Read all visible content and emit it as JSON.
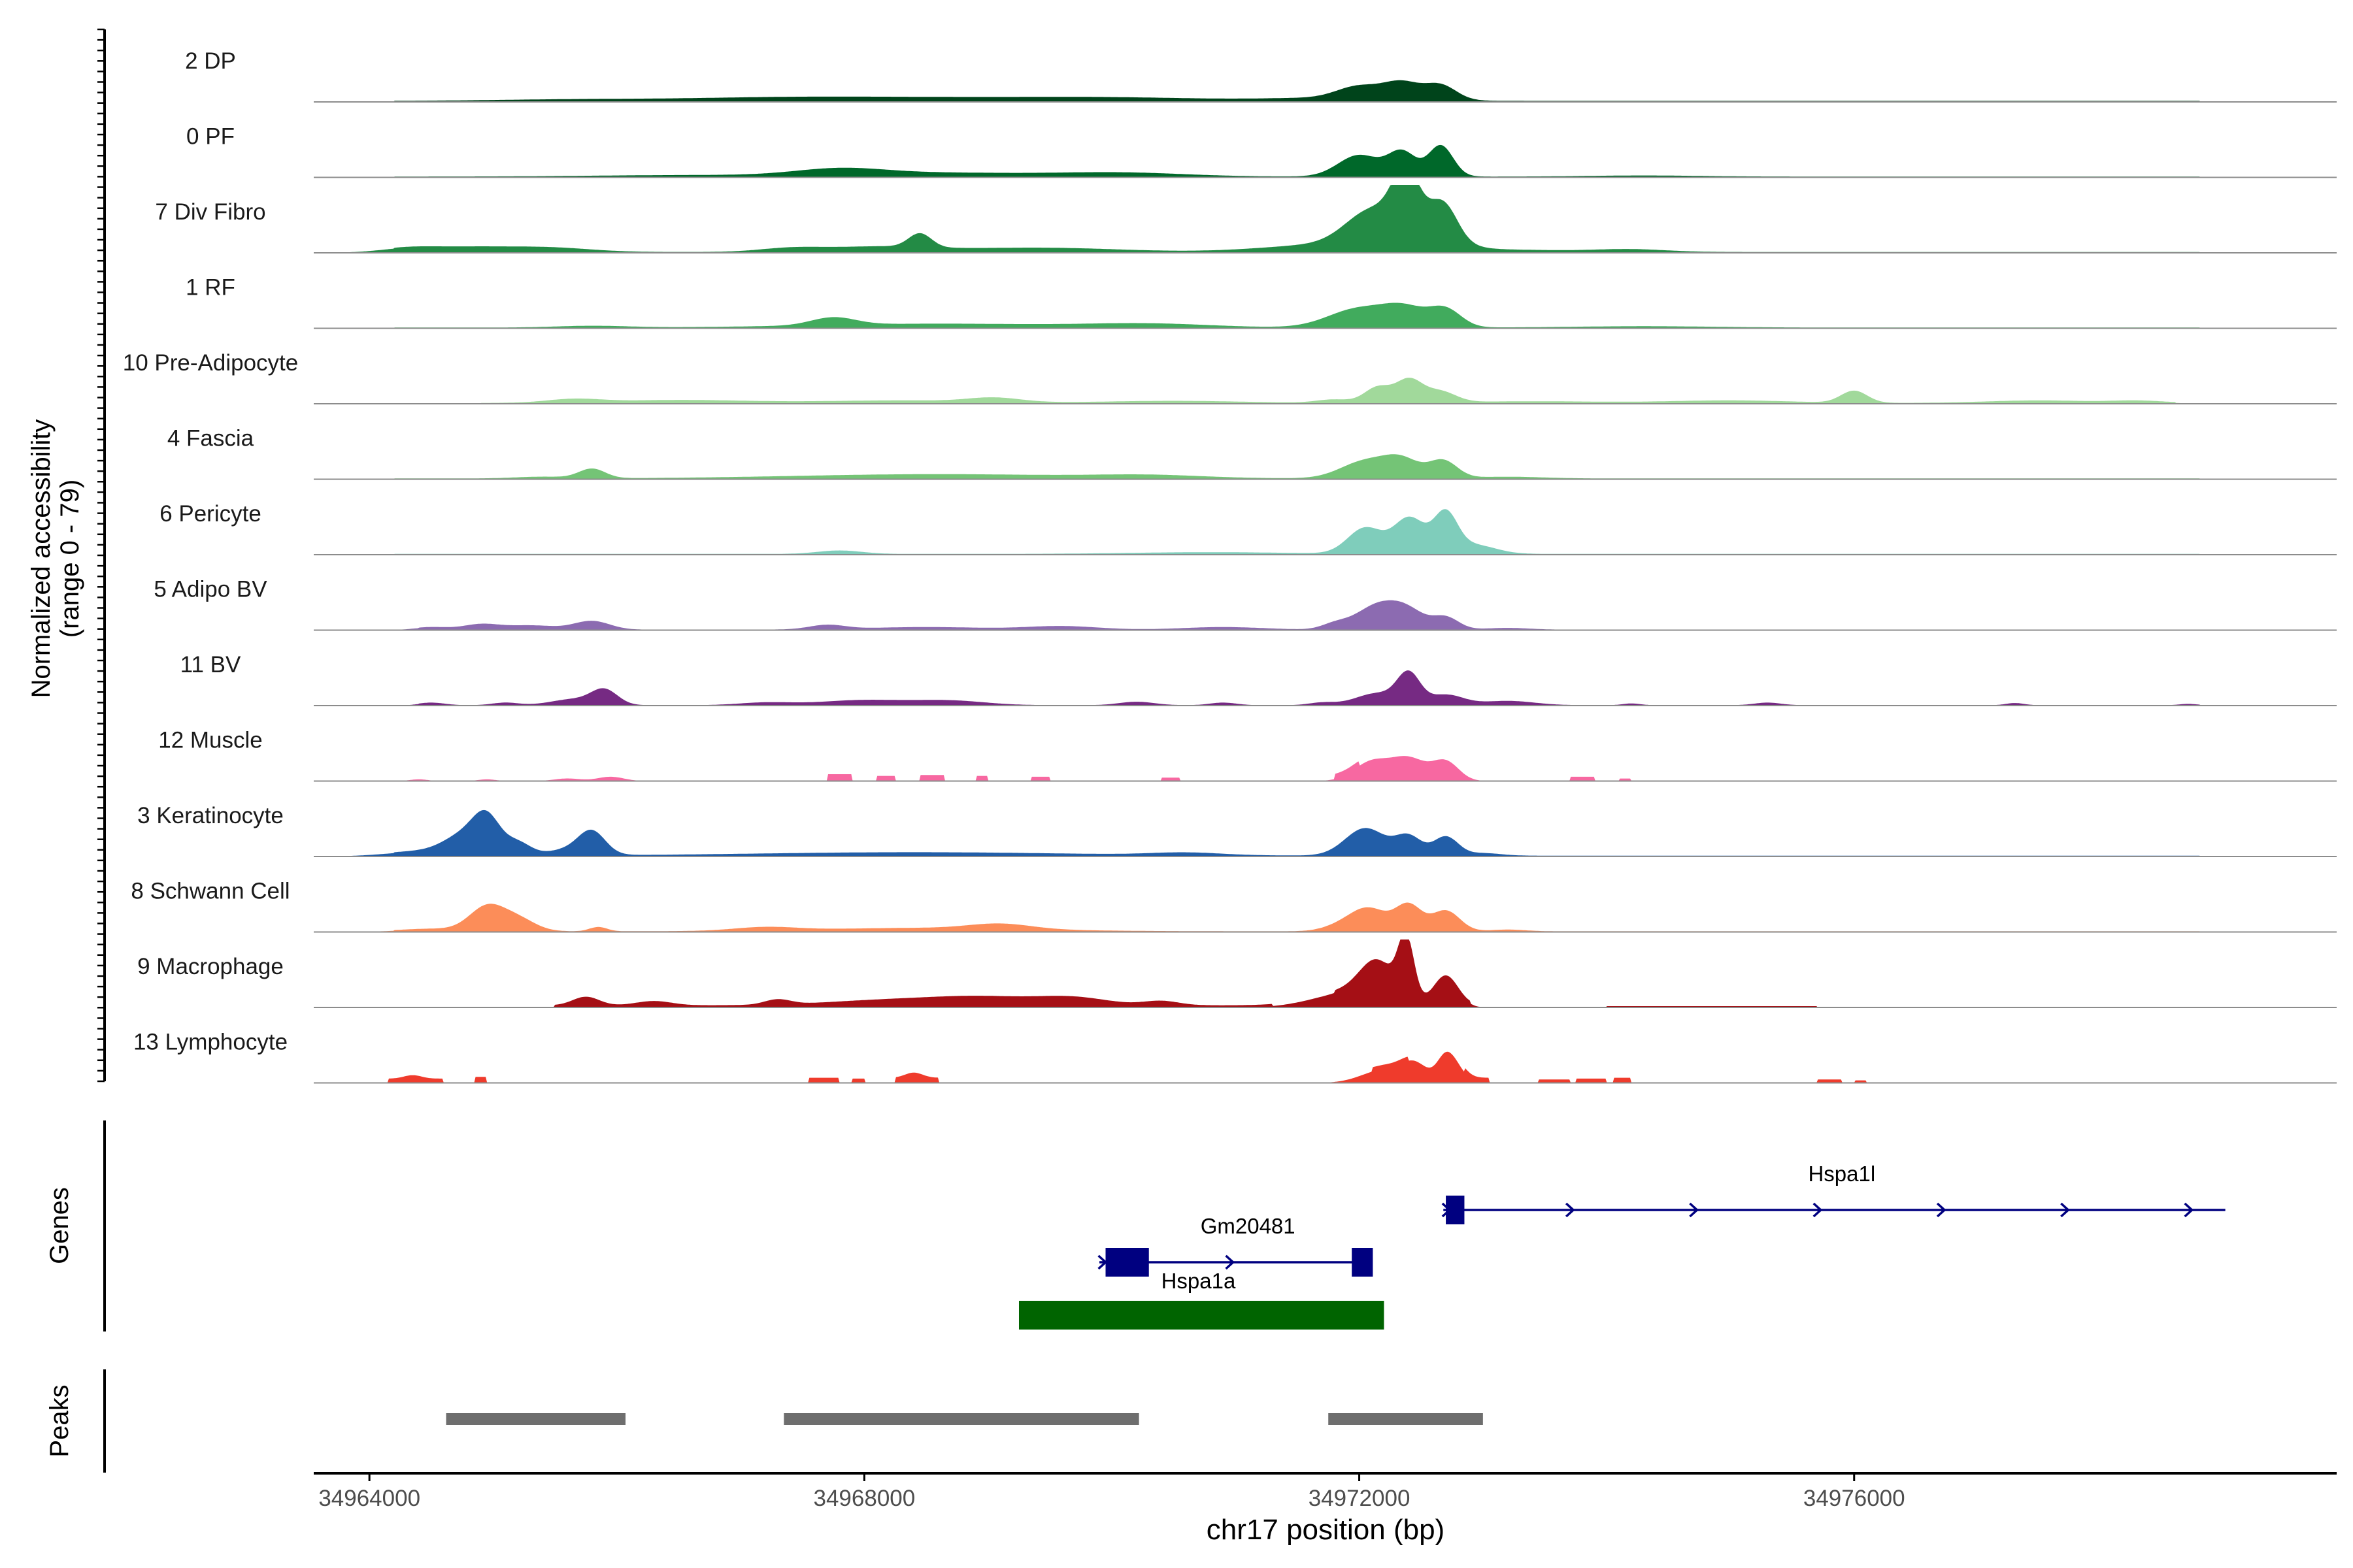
{
  "chart_data": {
    "type": "area",
    "title": "",
    "xlabel": "chr17 position (bp)",
    "ylabel_line1": "Normalized accessibility",
    "ylabel_line2": "(range 0 - 79)",
    "xlim": [
      34963550,
      34979900
    ],
    "yrange": [
      0,
      79
    ],
    "x_ticks": [
      34964000,
      34968000,
      34972000,
      34976000
    ],
    "x_tick_labels": [
      "34964000",
      "34968000",
      "34972000",
      "34976000"
    ],
    "genes_label": "Genes",
    "peaks_label": "Peaks",
    "tracks": [
      {
        "name": "2 DP",
        "color": "#00441b",
        "segments": [
          [
            34964200,
            34978800,
            1.2
          ]
        ],
        "peaks": [
          [
            34965700,
            1800,
            1.8
          ],
          [
            34967200,
            2000,
            2.5
          ],
          [
            34968500,
            3000,
            4
          ],
          [
            34970100,
            2000,
            3
          ],
          [
            34971800,
            1500,
            3.5
          ],
          [
            34972000,
            500,
            14
          ],
          [
            34972350,
            420,
            19
          ],
          [
            34972660,
            360,
            17
          ]
        ]
      },
      {
        "name": "0 PF",
        "color": "#00682a",
        "segments": [
          [
            34964200,
            34978800,
            1.0
          ]
        ],
        "peaks": [
          [
            34966500,
            2000,
            1.5
          ],
          [
            34967800,
            1000,
            7
          ],
          [
            34968600,
            2400,
            4.5
          ],
          [
            34970100,
            1400,
            4
          ],
          [
            34972000,
            480,
            25
          ],
          [
            34972350,
            320,
            28
          ],
          [
            34972660,
            280,
            36
          ],
          [
            34974300,
            1200,
            1.2
          ]
        ]
      },
      {
        "name": "7 Div Fibro",
        "color": "#238b45",
        "segments": [
          [
            34964200,
            34978800,
            1.0
          ]
        ],
        "peaks": [
          [
            34964300,
            600,
            3
          ],
          [
            34964800,
            1200,
            6
          ],
          [
            34965500,
            900,
            4
          ],
          [
            34967400,
            700,
            4
          ],
          [
            34968100,
            1200,
            6
          ],
          [
            34968450,
            260,
            16
          ],
          [
            34969400,
            1800,
            5
          ],
          [
            34971800,
            1500,
            9
          ],
          [
            34972100,
            600,
            38
          ],
          [
            34972380,
            300,
            64
          ],
          [
            34972680,
            320,
            40
          ],
          [
            34972500,
            700,
            18
          ],
          [
            34973200,
            1500,
            2.5
          ],
          [
            34974200,
            800,
            3
          ]
        ]
      },
      {
        "name": "1 RF",
        "color": "#41ab5d",
        "segments": [
          [
            34964200,
            34978800,
            0.9
          ]
        ],
        "peaks": [
          [
            34965800,
            800,
            2
          ],
          [
            34967750,
            500,
            9
          ],
          [
            34968600,
            2800,
            4.5
          ],
          [
            34970300,
            1400,
            4
          ],
          [
            34972000,
            700,
            22
          ],
          [
            34972380,
            500,
            20
          ],
          [
            34972700,
            360,
            20
          ],
          [
            34974300,
            1600,
            1.5
          ]
        ]
      },
      {
        "name": "10 Pre-Adipocyte",
        "color": "#a1d99b",
        "segments": [
          [
            34964900,
            34978600,
            0.9
          ]
        ],
        "peaks": [
          [
            34965650,
            600,
            4
          ],
          [
            34966500,
            1600,
            3.5
          ],
          [
            34968300,
            1800,
            3
          ],
          [
            34969050,
            600,
            5
          ],
          [
            34970500,
            1600,
            2.5
          ],
          [
            34971800,
            400,
            4
          ],
          [
            34972150,
            300,
            18
          ],
          [
            34972400,
            300,
            26
          ],
          [
            34972650,
            360,
            13
          ],
          [
            34973400,
            1600,
            2
          ],
          [
            34975000,
            1400,
            3
          ],
          [
            34976000,
            300,
            14
          ],
          [
            34977500,
            1200,
            3
          ],
          [
            34978300,
            600,
            2.5
          ]
        ]
      },
      {
        "name": "4 Fascia",
        "color": "#74c476",
        "segments": [
          [
            34964200,
            34978800,
            0.9
          ]
        ],
        "peaks": [
          [
            34965400,
            600,
            2
          ],
          [
            34965800,
            300,
            11
          ],
          [
            34968600,
            3200,
            5
          ],
          [
            34970300,
            1200,
            3
          ],
          [
            34972050,
            560,
            20
          ],
          [
            34972350,
            420,
            20
          ],
          [
            34972680,
            320,
            20
          ],
          [
            34973200,
            800,
            2
          ]
        ]
      },
      {
        "name": "6 Pericyte",
        "color": "#7fcdbb",
        "segments": [
          [
            34964200,
            34978800,
            0.9
          ]
        ],
        "peaks": [
          [
            34967800,
            500,
            4
          ],
          [
            34970800,
            1800,
            2
          ],
          [
            34972050,
            400,
            30
          ],
          [
            34972400,
            340,
            36
          ],
          [
            34972700,
            260,
            38
          ],
          [
            34972700,
            700,
            12
          ],
          [
            34973000,
            400,
            4
          ]
        ]
      },
      {
        "name": "5 Adipo BV",
        "color": "#8c6bb1",
        "segments": [
          [
            34964400,
            34978700,
            0.6
          ]
        ],
        "peaks": [
          [
            34964500,
            400,
            3
          ],
          [
            34964900,
            400,
            6
          ],
          [
            34965300,
            600,
            5
          ],
          [
            34965800,
            400,
            10
          ],
          [
            34967700,
            400,
            5
          ],
          [
            34968500,
            1400,
            3
          ],
          [
            34969600,
            800,
            4
          ],
          [
            34970900,
            900,
            3
          ],
          [
            34971800,
            300,
            6
          ],
          [
            34972150,
            500,
            28
          ],
          [
            34972400,
            400,
            18
          ],
          [
            34972700,
            300,
            14
          ],
          [
            34973200,
            500,
            2
          ]
        ]
      },
      {
        "name": "11 BV",
        "color": "#762a83",
        "segments": [
          [
            34964400,
            34978800,
            0.5
          ]
        ],
        "peaks": [
          [
            34964500,
            300,
            3
          ],
          [
            34965100,
            300,
            3
          ],
          [
            34965650,
            500,
            7
          ],
          [
            34965900,
            300,
            17
          ],
          [
            34967200,
            600,
            3
          ],
          [
            34968000,
            1000,
            6
          ],
          [
            34968700,
            800,
            5
          ],
          [
            34970200,
            400,
            4
          ],
          [
            34970900,
            300,
            3
          ],
          [
            34971700,
            300,
            3
          ],
          [
            34972150,
            500,
            14
          ],
          [
            34972400,
            260,
            34
          ],
          [
            34972700,
            400,
            12
          ],
          [
            34973200,
            600,
            5
          ],
          [
            34974200,
            200,
            2
          ],
          [
            34975300,
            300,
            3
          ],
          [
            34977300,
            200,
            2.5
          ],
          [
            34978700,
            200,
            1.5
          ]
        ]
      },
      {
        "name": "12 Muscle",
        "color": "#f768a1",
        "segments": [
          [
            34967700,
            34967900,
            8
          ],
          [
            34968100,
            34968250,
            6
          ],
          [
            34968450,
            34968650,
            7
          ],
          [
            34968900,
            34969000,
            6
          ],
          [
            34969350,
            34969500,
            5
          ],
          [
            34970400,
            34970550,
            4
          ],
          [
            34971800,
            34972000,
            6
          ],
          [
            34973700,
            34973900,
            5
          ],
          [
            34974100,
            34974200,
            3
          ]
        ],
        "peaks": [
          [
            34965600,
            300,
            3
          ],
          [
            34965950,
            300,
            5
          ],
          [
            34964400,
            200,
            2
          ],
          [
            34964950,
            200,
            2
          ],
          [
            34972100,
            400,
            22
          ],
          [
            34972400,
            400,
            26
          ],
          [
            34972700,
            300,
            22
          ]
        ]
      },
      {
        "name": "3 Keratinocyte",
        "color": "#225ea8",
        "segments": [
          [
            34964200,
            34978800,
            1.0
          ]
        ],
        "peaks": [
          [
            34964400,
            800,
            5
          ],
          [
            34964800,
            500,
            25
          ],
          [
            34964950,
            300,
            33
          ],
          [
            34965200,
            300,
            14
          ],
          [
            34965800,
            300,
            24
          ],
          [
            34965650,
            500,
            8
          ],
          [
            34968400,
            3600,
            4
          ],
          [
            34970600,
            800,
            3
          ],
          [
            34972050,
            460,
            32
          ],
          [
            34972400,
            300,
            22
          ],
          [
            34972700,
            280,
            22
          ],
          [
            34973000,
            400,
            3
          ]
        ]
      },
      {
        "name": "8 Schwann Cell",
        "color": "#fc8d59",
        "segments": [
          [
            34964200,
            34978800,
            0.8
          ]
        ],
        "peaks": [
          [
            34964500,
            700,
            3
          ],
          [
            34964950,
            400,
            28
          ],
          [
            34965200,
            400,
            14
          ],
          [
            34965850,
            200,
            5
          ],
          [
            34967200,
            700,
            4
          ],
          [
            34968500,
            2400,
            4
          ],
          [
            34969100,
            700,
            6
          ],
          [
            34971850,
            400,
            6
          ],
          [
            34972080,
            420,
            26
          ],
          [
            34972400,
            300,
            30
          ],
          [
            34972700,
            320,
            24
          ],
          [
            34973200,
            400,
            2
          ]
        ]
      },
      {
        "name": "9 Macrophage",
        "color": "#a50f15",
        "segments": [
          [
            34965500,
            34971300,
            2.5
          ],
          [
            34971800,
            34972900,
            3
          ],
          [
            34974000,
            34975700,
            1.5
          ]
        ],
        "peaks": [
          [
            34965750,
            300,
            10
          ],
          [
            34966300,
            400,
            5
          ],
          [
            34967300,
            300,
            6
          ],
          [
            34968200,
            1400,
            6
          ],
          [
            34969000,
            1200,
            9
          ],
          [
            34969700,
            800,
            8
          ],
          [
            34970400,
            400,
            5
          ],
          [
            34971900,
            800,
            16
          ],
          [
            34972150,
            400,
            42
          ],
          [
            34972380,
            180,
            70
          ],
          [
            34972700,
            280,
            34
          ]
        ]
      },
      {
        "name": "13 Lymphocyte",
        "color": "#ef3b2c",
        "segments": [
          [
            34964150,
            34964600,
            5
          ],
          [
            34964850,
            34964950,
            7
          ],
          [
            34967550,
            34967800,
            6
          ],
          [
            34967900,
            34968000,
            5
          ],
          [
            34968250,
            34968600,
            6
          ],
          [
            34972100,
            34972400,
            5
          ],
          [
            34972850,
            34973050,
            6
          ],
          [
            34973450,
            34973700,
            4
          ],
          [
            34973750,
            34974000,
            5
          ],
          [
            34974050,
            34974200,
            6
          ],
          [
            34975700,
            34975900,
            4
          ],
          [
            34976000,
            34976100,
            3
          ]
        ],
        "peaks": [
          [
            34964350,
            200,
            4
          ],
          [
            34968400,
            200,
            6
          ],
          [
            34972200,
            500,
            15
          ],
          [
            34972450,
            300,
            20
          ],
          [
            34972700,
            200,
            30
          ],
          [
            34972800,
            200,
            12
          ]
        ]
      }
    ],
    "genes": [
      {
        "name": "Hspa1l",
        "strand": "+",
        "start": 34972680,
        "end": 34979000,
        "exons": [
          [
            34972700,
            34972850
          ]
        ],
        "color": "#000080"
      },
      {
        "name": "Gm20481",
        "strand": "+",
        "start": 34969900,
        "end": 34972100,
        "exons": [
          [
            34969950,
            34970300
          ],
          [
            34971940,
            34972110
          ]
        ],
        "color": "#000080"
      },
      {
        "name": "Hspa1a",
        "strand": "-",
        "start": 34969250,
        "end": 34972200,
        "exons": [
          [
            34969250,
            34972200
          ]
        ],
        "color": "#006400"
      }
    ],
    "peak_regions": [
      [
        34964620,
        34966070
      ],
      [
        34967350,
        34970220
      ],
      [
        34971750,
        34973000
      ]
    ]
  }
}
